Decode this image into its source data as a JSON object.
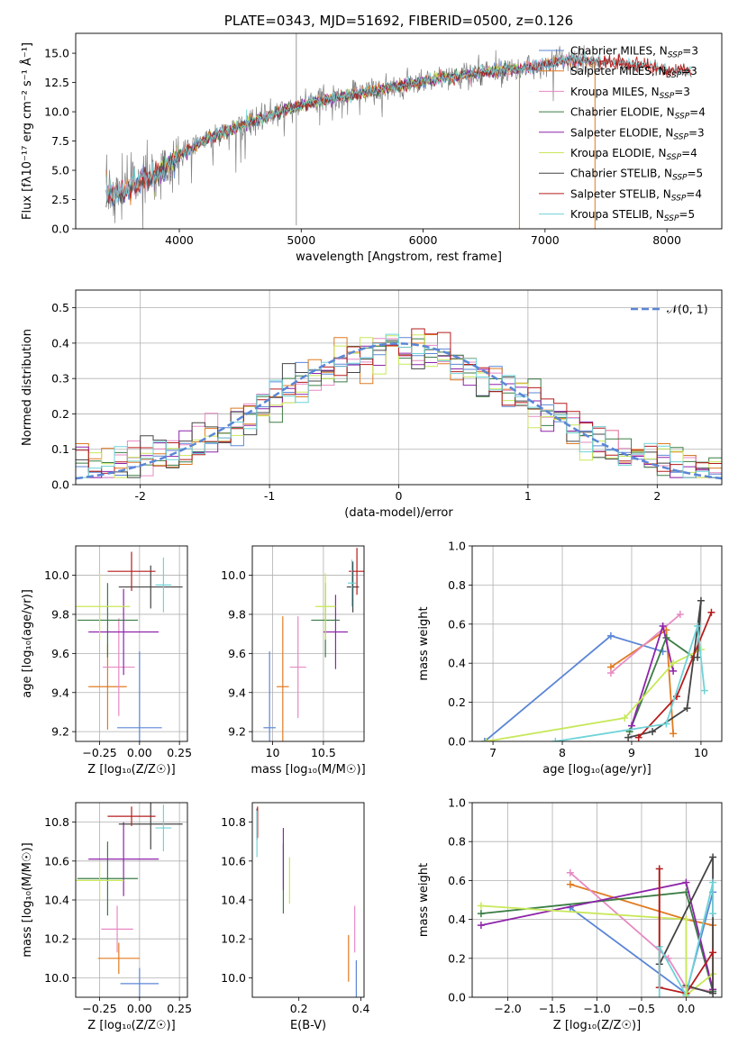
{
  "colors": [
    "#5b86d6",
    "#e07b22",
    "#e78ac3",
    "#3a7d44",
    "#8e24aa",
    "#c8e85a",
    "#444444",
    "#b71c1c",
    "#6fd3d8"
  ],
  "chart_data": [
    {
      "id": "spectrum",
      "type": "line",
      "title": "PLATE=0343, MJD=51692, FIBERID=0500, z=0.126",
      "xlabel": "wavelength [Angstrom, rest frame]",
      "ylabel": "Flux [fλ10⁻¹⁷ erg cm⁻² s⁻¹ Å⁻¹]",
      "xlim": [
        3150,
        8450
      ],
      "ylim": [
        0,
        16.7
      ],
      "xticks": [
        4000,
        5000,
        6000,
        7000,
        8000
      ],
      "yticks": [
        0.0,
        2.5,
        5.0,
        7.5,
        10.0,
        12.5,
        15.0
      ],
      "grid": false,
      "legend_position": "top-right",
      "continuum": {
        "x": [
          3400,
          3500,
          3600,
          3700,
          3800,
          3900,
          4000,
          4200,
          4500,
          4800,
          5100,
          5400,
          5700,
          6000,
          6300,
          6600,
          6800,
          7000,
          7200,
          7500,
          7800,
          8000,
          8200
        ],
        "y": [
          3.0,
          3.1,
          3.6,
          4.2,
          4.6,
          5.3,
          6.3,
          7.5,
          8.8,
          9.9,
          10.9,
          11.4,
          12.0,
          12.6,
          13.1,
          13.5,
          13.7,
          14.1,
          14.4,
          14.3,
          13.9,
          13.6,
          13.4
        ]
      },
      "series": [
        {
          "name": "Chabrier MILES, N_SSP=3",
          "range": [
            3400,
            7400
          ]
        },
        {
          "name": "Salpeter MILES, N_SSP=3",
          "range": [
            3400,
            7400
          ]
        },
        {
          "name": "Kroupa MILES, N_SSP=3",
          "range": [
            3400,
            7400
          ]
        },
        {
          "name": "Chabrier ELODIE, N_SSP=4",
          "range": [
            3800,
            6800
          ]
        },
        {
          "name": "Salpeter ELODIE, N_SSP=3",
          "range": [
            3800,
            6800
          ]
        },
        {
          "name": "Kroupa ELODIE, N_SSP=4",
          "range": [
            3800,
            6800
          ]
        },
        {
          "name": "Chabrier STELIB, N_SSP=5",
          "range": [
            3400,
            8200
          ]
        },
        {
          "name": "Salpeter STELIB, N_SSP=4",
          "range": [
            3400,
            8200
          ]
        },
        {
          "name": "Kroupa STELIB, N_SSP=5",
          "range": [
            3400,
            8200
          ]
        }
      ]
    },
    {
      "id": "residuals",
      "type": "line",
      "xlabel": "(data-model)/error",
      "ylabel": "Normed distribution",
      "xlim": [
        -2.5,
        2.5
      ],
      "ylim": [
        0,
        0.55
      ],
      "xticks": [
        -2,
        -1,
        0,
        1,
        2
      ],
      "yticks": [
        0.0,
        0.1,
        0.2,
        0.3,
        0.4,
        0.5
      ],
      "grid": true,
      "legend_position": "top-right",
      "reference": {
        "name": "𝒩(0, 1)",
        "mu": 0,
        "sigma": 1
      },
      "bin_width": 0.1
    },
    {
      "id": "age-vs-Z",
      "type": "scatter",
      "xlabel": "Z [log₁₀(Z/Z☉)]",
      "ylabel": "age  [log₁₀(age/yr)]",
      "xlim": [
        -0.4,
        0.3
      ],
      "ylim": [
        9.15,
        10.15
      ],
      "xticks": [
        -0.25,
        0.0,
        0.25
      ],
      "xticklabels": [
        "−0.25",
        "0.00",
        "0.25"
      ],
      "yticks": [
        9.2,
        9.4,
        9.6,
        9.8,
        10.0
      ],
      "grid": true,
      "points": [
        {
          "x": 0.0,
          "xerr": 0.14,
          "y": 9.22,
          "yerr": 0.39
        },
        {
          "x": -0.2,
          "xerr": 0.12,
          "y": 9.43,
          "yerr": 0.22
        },
        {
          "x": -0.13,
          "xerr": 0.1,
          "y": 9.53,
          "yerr": 0.25
        },
        {
          "x": -0.2,
          "xerr": 0.19,
          "y": 9.77,
          "yerr": 0.19
        },
        {
          "x": -0.1,
          "xerr": 0.22,
          "y": 9.71,
          "yerr": 0.22
        },
        {
          "x": -0.25,
          "xerr": 0.19,
          "y": 9.84,
          "yerr": 0.17
        },
        {
          "x": 0.07,
          "xerr": 0.2,
          "y": 9.94,
          "yerr": 0.11
        },
        {
          "x": -0.05,
          "xerr": 0.15,
          "y": 10.02,
          "yerr": 0.1
        },
        {
          "x": 0.15,
          "xerr": 0.05,
          "y": 9.95,
          "yerr": 0.14
        }
      ]
    },
    {
      "id": "age-vs-mass",
      "type": "scatter",
      "xlabel": "mass [log₁₀(M/M☉)]",
      "ylabel": "",
      "xlim": [
        9.8,
        10.9
      ],
      "ylim": [
        9.15,
        10.15
      ],
      "xticks": [
        10.0,
        10.5
      ],
      "yticks": [
        9.2,
        9.4,
        9.6,
        9.8,
        10.0
      ],
      "grid": true,
      "points": [
        {
          "x": 9.97,
          "xerr": 0.06,
          "y": 9.22,
          "yerr": 0.39
        },
        {
          "x": 10.1,
          "xerr": 0.06,
          "y": 9.43,
          "yerr": 0.36
        },
        {
          "x": 10.25,
          "xerr": 0.08,
          "y": 9.53,
          "yerr": 0.26
        },
        {
          "x": 10.52,
          "xerr": 0.14,
          "y": 9.77,
          "yerr": 0.19
        },
        {
          "x": 10.62,
          "xerr": 0.12,
          "y": 9.71,
          "yerr": 0.19
        },
        {
          "x": 10.52,
          "xerr": 0.1,
          "y": 9.84,
          "yerr": 0.17
        },
        {
          "x": 10.79,
          "xerr": 0.06,
          "y": 9.94,
          "yerr": 0.13
        },
        {
          "x": 10.83,
          "xerr": 0.08,
          "y": 10.02,
          "yerr": 0.12
        },
        {
          "x": 10.78,
          "xerr": 0.04,
          "y": 9.96,
          "yerr": 0.12
        }
      ]
    },
    {
      "id": "weight-vs-age",
      "type": "line",
      "xlabel": "age  [log₁₀(age/yr)]",
      "ylabel": "mass weight",
      "xlim": [
        6.7,
        10.3
      ],
      "ylim": [
        0,
        1.0
      ],
      "xticks": [
        7,
        8,
        9,
        10
      ],
      "yticks": [
        0.0,
        0.2,
        0.4,
        0.6,
        0.8,
        1.0
      ],
      "grid": true,
      "series": [
        {
          "x": [
            6.88,
            8.7,
            9.45
          ],
          "y": [
            0.0,
            0.54,
            0.46
          ]
        },
        {
          "x": [
            8.7,
            9.5,
            9.6
          ],
          "y": [
            0.38,
            0.57,
            0.04
          ]
        },
        {
          "x": [
            8.7,
            9.7
          ],
          "y": [
            0.35,
            0.65
          ]
        },
        {
          "x": [
            8.97,
            9.5,
            9.9
          ],
          "y": [
            0.05,
            0.53,
            0.43
          ]
        },
        {
          "x": [
            9.0,
            9.45,
            9.6
          ],
          "y": [
            0.08,
            0.59,
            0.36
          ]
        },
        {
          "x": [
            6.9,
            8.9,
            9.6,
            10.0
          ],
          "y": [
            0.0,
            0.12,
            0.4,
            0.47
          ]
        },
        {
          "x": [
            8.95,
            9.3,
            9.8,
            10.0,
            9.95
          ],
          "y": [
            0.02,
            0.05,
            0.17,
            0.72,
            0.43
          ]
        },
        {
          "x": [
            9.1,
            9.65,
            10.15
          ],
          "y": [
            0.02,
            0.23,
            0.66
          ]
        },
        {
          "x": [
            7.9,
            9.5,
            9.95,
            10.05
          ],
          "y": [
            0.0,
            0.09,
            0.59,
            0.26
          ]
        }
      ]
    },
    {
      "id": "mass-vs-Z",
      "type": "scatter",
      "xlabel": "Z [log₁₀(Z/Z☉)]",
      "ylabel": "mass [log₁₀(M/M☉)]",
      "xlim": [
        -0.4,
        0.3
      ],
      "ylim": [
        9.9,
        10.9
      ],
      "xticks": [
        -0.25,
        0.0,
        0.25
      ],
      "xticklabels": [
        "−0.25",
        "0.00",
        "0.25"
      ],
      "yticks": [
        10.0,
        10.2,
        10.4,
        10.6,
        10.8
      ],
      "grid": true,
      "points": [
        {
          "x": 0.0,
          "xerr": 0.12,
          "y": 9.97,
          "yerr": 0.08
        },
        {
          "x": -0.13,
          "xerr": 0.13,
          "y": 10.1,
          "yerr": 0.08
        },
        {
          "x": -0.14,
          "xerr": 0.1,
          "y": 10.25,
          "yerr": 0.12
        },
        {
          "x": -0.2,
          "xerr": 0.19,
          "y": 10.51,
          "yerr": 0.19
        },
        {
          "x": -0.1,
          "xerr": 0.22,
          "y": 10.61,
          "yerr": 0.19
        },
        {
          "x": -0.25,
          "xerr": 0.15,
          "y": 10.5,
          "yerr": 0.1
        },
        {
          "x": 0.07,
          "xerr": 0.2,
          "y": 10.79,
          "yerr": 0.13
        },
        {
          "x": -0.05,
          "xerr": 0.15,
          "y": 10.83,
          "yerr": 0.05
        },
        {
          "x": 0.15,
          "xerr": 0.05,
          "y": 10.77,
          "yerr": 0.12
        }
      ]
    },
    {
      "id": "mass-vs-ebv",
      "type": "scatter",
      "xlabel": "E(B-V)",
      "ylabel": "",
      "xlim": [
        0.05,
        0.41
      ],
      "ylim": [
        9.9,
        10.9
      ],
      "xticks": [
        0.2,
        0.4
      ],
      "yticks": [
        10.0,
        10.2,
        10.4,
        10.6,
        10.8
      ],
      "grid": false,
      "points": [
        {
          "x": 0.385,
          "xerr": 0,
          "y": 9.97,
          "yerr": 0.12
        },
        {
          "x": 0.36,
          "xerr": 0,
          "y": 10.1,
          "yerr": 0.12
        },
        {
          "x": 0.38,
          "xerr": 0,
          "y": 10.25,
          "yerr": 0.12
        },
        {
          "x": 0.15,
          "xerr": 0,
          "y": 10.51,
          "yerr": 0.18
        },
        {
          "x": 0.15,
          "xerr": 0,
          "y": 10.61,
          "yerr": 0.16
        },
        {
          "x": 0.17,
          "xerr": 0,
          "y": 10.5,
          "yerr": 0.12
        },
        {
          "x": 0.065,
          "xerr": 0,
          "y": 10.79,
          "yerr": 0.08
        },
        {
          "x": 0.067,
          "xerr": 0,
          "y": 10.8,
          "yerr": 0.08
        },
        {
          "x": 0.065,
          "xerr": 0,
          "y": 10.74,
          "yerr": 0.12
        }
      ]
    },
    {
      "id": "weight-vs-Z",
      "type": "line",
      "xlabel": "Z [log₁₀(Z/Z☉)]",
      "ylabel": "mass weight",
      "xlim": [
        -2.4,
        0.4
      ],
      "ylim": [
        0,
        1.0
      ],
      "xticks": [
        -2.0,
        -1.5,
        -1.0,
        -0.5,
        0.0
      ],
      "xticklabels": [
        "−2.0",
        "−1.5",
        "−1.0",
        "−0.5",
        "0.0"
      ],
      "yticks": [
        0.0,
        0.2,
        0.4,
        0.6,
        0.8,
        1.0
      ],
      "grid": true,
      "series": [
        {
          "x": [
            -1.3,
            0.0,
            0.3
          ],
          "y": [
            0.46,
            0.02,
            0.54
          ]
        },
        {
          "x": [
            -1.3,
            0.0,
            0.3,
            0.3
          ],
          "y": [
            0.58,
            0.4,
            0.37,
            0.04
          ]
        },
        {
          "x": [
            -1.3,
            -0.2,
            0.0,
            0.3
          ],
          "y": [
            0.64,
            0.2,
            0.05,
            0.03
          ]
        },
        {
          "x": [
            -2.3,
            0.0,
            0.3
          ],
          "y": [
            0.43,
            0.54,
            0.03
          ]
        },
        {
          "x": [
            -2.3,
            0.0,
            0.3
          ],
          "y": [
            0.37,
            0.59,
            0.04
          ]
        },
        {
          "x": [
            -2.3,
            0.0,
            0.0,
            0.3
          ],
          "y": [
            0.47,
            0.4,
            0.01,
            0.12
          ]
        },
        {
          "x": [
            -0.3,
            0.3,
            0.3,
            0.0
          ],
          "y": [
            0.17,
            0.72,
            0.02,
            0.06
          ]
        },
        {
          "x": [
            -0.3,
            -0.3,
            0.0,
            0.3
          ],
          "y": [
            0.66,
            0.05,
            0.02,
            0.23
          ]
        },
        {
          "x": [
            -0.3,
            0.0,
            0.3,
            0.3
          ],
          "y": [
            0.26,
            0.01,
            0.59,
            0.43
          ]
        }
      ]
    }
  ]
}
